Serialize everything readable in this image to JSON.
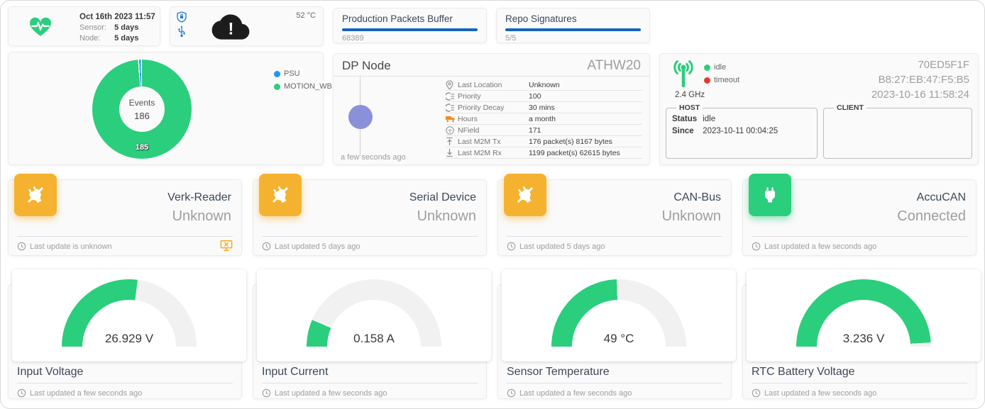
{
  "colors": {
    "green": "#2BCE7C",
    "amber": "#F5B230",
    "blue": "#1565C0",
    "legend_blue": "#2196F3",
    "red": "#E53935",
    "purple": "#8A90D9",
    "track": "#f1f1f1"
  },
  "health": {
    "date": "Oct 16th 2023 11:57",
    "rows": [
      {
        "label": "Sensor:",
        "value": "5 days"
      },
      {
        "label": "Node:",
        "value": "5 days"
      }
    ]
  },
  "system": {
    "temperature": "52 °C",
    "icons": [
      "shield-lock-icon",
      "usb-icon",
      "cloud-alert-icon"
    ]
  },
  "packets_buffer": {
    "title": "Production Packets Buffer",
    "value": "68389",
    "fraction": 1
  },
  "repo_signatures": {
    "title": "Repo Signatures",
    "value": "5/5",
    "fraction": 1
  },
  "events": {
    "center_label": "Events",
    "center_value": "186",
    "slice_label": "185",
    "legend": [
      {
        "label": "PSU",
        "color": "#2196F3"
      },
      {
        "label": "MOTION_WB",
        "color": "#2BCE7C"
      }
    ]
  },
  "dp_node": {
    "title": "DP Node",
    "badge": "ATHW20",
    "timeline_caption": "a few seconds ago",
    "rows": [
      {
        "icon": "location-pin-icon",
        "label": "Last Location",
        "value": "Unknown"
      },
      {
        "icon": "priority-icon",
        "label": "Priority",
        "value": "100"
      },
      {
        "icon": "priority-icon",
        "label": "Priority Decay",
        "value": "30 mins"
      },
      {
        "icon": "truck-icon",
        "label": "Hours",
        "value": "a month"
      },
      {
        "icon": "signal-icon",
        "label": "NField",
        "value": "171"
      },
      {
        "icon": "upload-icon",
        "label": "Last M2M Tx",
        "value": "176 packet(s) 8167 bytes"
      },
      {
        "icon": "download-icon",
        "label": "Last M2M Rx",
        "value": "1199 packet(s) 62615 bytes"
      }
    ]
  },
  "wifi": {
    "band": "2.4 GHz",
    "legend": [
      {
        "label": "idle",
        "color": "#2BCE7C"
      },
      {
        "label": "timeout",
        "color": "#E53935"
      }
    ],
    "device_id": "70ED5F1F",
    "mac": "B8:27:EB:47:F5:B5",
    "timestamp": "2023-10-16 11:58:24",
    "host": {
      "title": "HOST",
      "status_label": "Status",
      "status_value": "idle",
      "since_label": "Since",
      "since_value": "2023-10-11 00:04:25"
    },
    "client": {
      "title": "CLIENT"
    }
  },
  "devices": [
    {
      "name": "Verk-Reader",
      "status": "Unknown",
      "footer": "Last update is unknown",
      "icon": "plug-off-icon",
      "accent": "#F5B230",
      "footer_icon": "monitor-x-icon"
    },
    {
      "name": "Serial Device",
      "status": "Unknown",
      "footer": "Last updated 5 days ago",
      "icon": "plug-off-icon",
      "accent": "#F5B230"
    },
    {
      "name": "CAN-Bus",
      "status": "Unknown",
      "footer": "Last updated 5 days ago",
      "icon": "plug-off-icon",
      "accent": "#F5B230"
    },
    {
      "name": "AccuCAN",
      "status": "Connected",
      "footer": "Last updated a few seconds ago",
      "icon": "plug-icon",
      "accent": "#2BCE7C"
    }
  ],
  "gauge_cards": [
    {
      "title": "Input Voltage",
      "display": "26.929 V",
      "footer": "Last updated a few seconds ago"
    },
    {
      "title": "Input Current",
      "display": "0.158 A",
      "footer": "Last updated a few seconds ago"
    },
    {
      "title": "Sensor Temperature",
      "display": "49 °C",
      "footer": "Last updated a few seconds ago"
    },
    {
      "title": "RTC Battery Voltage",
      "display": "3.236 V",
      "footer": "Last updated a few seconds ago"
    }
  ],
  "chart_data": [
    {
      "type": "pie",
      "donut": true,
      "title": "Events",
      "center_label": "Events",
      "center_value": 186,
      "categories": [
        "PSU",
        "MOTION_WB"
      ],
      "values": [
        1,
        185
      ],
      "colors": [
        "#2196F3",
        "#2BCE7C"
      ],
      "data_labels": [
        null,
        "185"
      ],
      "legend_position": "top-right"
    },
    {
      "type": "gauge",
      "title": "Input Voltage",
      "value": 26.929,
      "unit": "V",
      "fill_fraction": 0.54,
      "color": "#2BCE7C",
      "track": "#f1f1f1"
    },
    {
      "type": "gauge",
      "title": "Input Current",
      "value": 0.158,
      "unit": "A",
      "fill_fraction": 0.13,
      "color": "#2BCE7C",
      "track": "#f1f1f1"
    },
    {
      "type": "gauge",
      "title": "Sensor Temperature",
      "value": 49,
      "unit": "°C",
      "fill_fraction": 0.49,
      "color": "#2BCE7C",
      "track": "#f1f1f1"
    },
    {
      "type": "gauge",
      "title": "RTC Battery Voltage",
      "value": 3.236,
      "unit": "V",
      "fill_fraction": 0.98,
      "color": "#2BCE7C",
      "track": "#f1f1f1"
    }
  ]
}
